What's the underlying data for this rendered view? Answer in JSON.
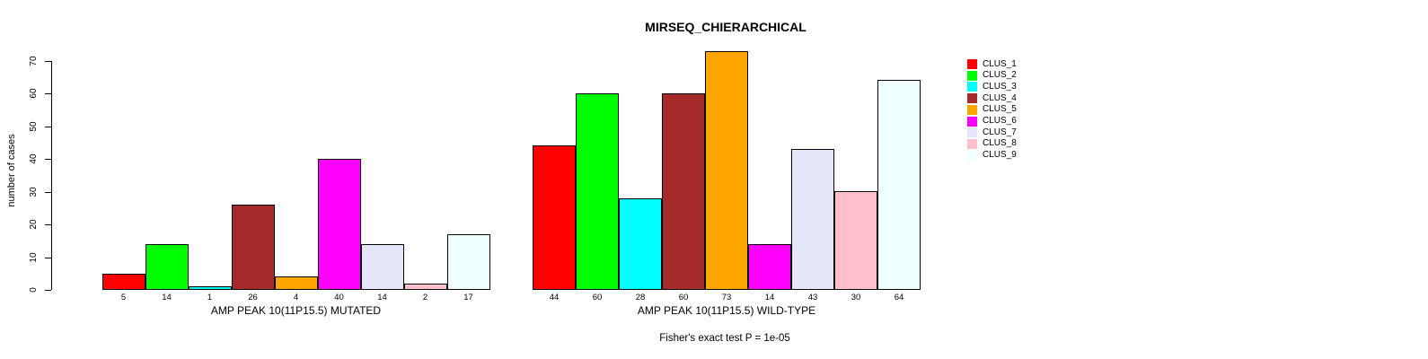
{
  "title": "MIRSEQ_CHIERARCHICAL",
  "annotation": "Fisher's exact test P = 1e-05",
  "chart_data": {
    "type": "bar",
    "title": "MIRSEQ_CHIERARCHICAL",
    "ylabel": "number of cases",
    "ylim": [
      0,
      70
    ],
    "yticks": [
      0,
      10,
      20,
      30,
      40,
      50,
      60,
      70
    ],
    "grid": false,
    "legend_position": "right",
    "legend": [
      {
        "label": "CLUS_1",
        "color": "#FF0000"
      },
      {
        "label": "CLUS_2",
        "color": "#00FF00"
      },
      {
        "label": "CLUS_3",
        "color": "#00FFFF"
      },
      {
        "label": "CLUS_4",
        "color": "#A52A2A"
      },
      {
        "label": "CLUS_5",
        "color": "#FFA500"
      },
      {
        "label": "CLUS_6",
        "color": "#FF00FF"
      },
      {
        "label": "CLUS_7",
        "color": "#E6E6FA"
      },
      {
        "label": "CLUS_8",
        "color": "#FFC0CB"
      },
      {
        "label": "CLUS_9",
        "color": "#F0FFFF"
      }
    ],
    "groups": [
      {
        "xlabel": "AMP PEAK 10(11P15.5) MUTATED",
        "categories": [
          "CLUS_1",
          "CLUS_2",
          "CLUS_3",
          "CLUS_4",
          "CLUS_5",
          "CLUS_6",
          "CLUS_7",
          "CLUS_8",
          "CLUS_9"
        ],
        "values": [
          5,
          14,
          1,
          26,
          4,
          40,
          14,
          2,
          17
        ]
      },
      {
        "xlabel": "AMP PEAK 10(11P15.5) WILD-TYPE",
        "categories": [
          "CLUS_1",
          "CLUS_2",
          "CLUS_3",
          "CLUS_4",
          "CLUS_5",
          "CLUS_6",
          "CLUS_7",
          "CLUS_8",
          "CLUS_9"
        ],
        "values": [
          44,
          60,
          28,
          60,
          73,
          14,
          43,
          30,
          64
        ]
      }
    ],
    "annotation": "Fisher's exact test P = 1e-05"
  }
}
